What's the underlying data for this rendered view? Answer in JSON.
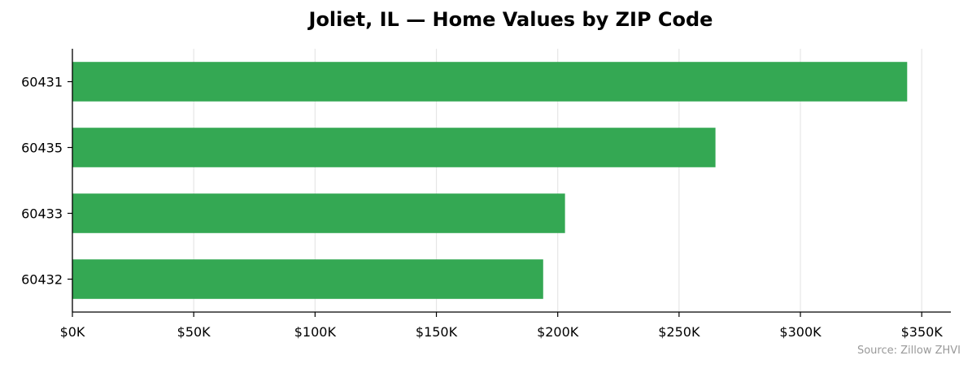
{
  "chart_data": {
    "type": "bar",
    "orientation": "horizontal",
    "title": "Joliet, IL — Home Values by ZIP Code",
    "source": "Source: Zillow ZHVI",
    "xlabel": "",
    "ylabel": "",
    "categories": [
      "60431",
      "60435",
      "60433",
      "60432"
    ],
    "values": [
      344000,
      265000,
      203000,
      194000
    ],
    "xlim": [
      0,
      362000
    ],
    "x_ticks": [
      0,
      50000,
      100000,
      150000,
      200000,
      250000,
      300000,
      350000
    ],
    "x_tick_labels": [
      "$0K",
      "$50K",
      "$100K",
      "$150K",
      "$200K",
      "$250K",
      "$300K",
      "$350K"
    ],
    "grid": "vertical",
    "legend": "none",
    "colors": {
      "bar": "#34a853",
      "grid": "#e6e6e6",
      "axis": "#000000",
      "source": "#999999"
    }
  }
}
